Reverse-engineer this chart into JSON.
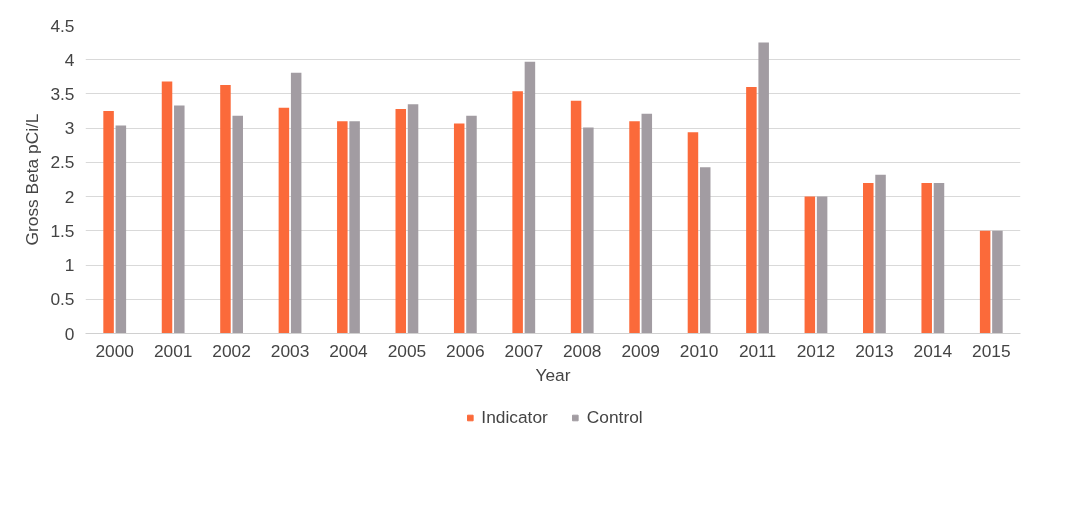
{
  "chart_data": {
    "type": "bar",
    "xlabel": "Year",
    "ylabel": "Gross Beta pCi/L",
    "categories": [
      "2000",
      "2001",
      "2002",
      "2003",
      "2004",
      "2005",
      "2006",
      "2007",
      "2008",
      "2009",
      "2010",
      "2011",
      "2012",
      "2013",
      "2014",
      "2015"
    ],
    "series": [
      {
        "name": "Indicator",
        "color": "#fb6a3a",
        "values": [
          3.25,
          3.68,
          3.63,
          3.3,
          3.1,
          3.28,
          3.07,
          3.54,
          3.4,
          3.1,
          2.94,
          3.6,
          2.0,
          2.2,
          2.2,
          1.5
        ]
      },
      {
        "name": "Control",
        "color": "#a29ca2",
        "values": [
          3.04,
          3.33,
          3.18,
          3.81,
          3.1,
          3.35,
          3.18,
          3.97,
          3.01,
          3.21,
          2.43,
          4.25,
          2.0,
          2.32,
          2.2,
          1.5
        ]
      }
    ],
    "ylim": [
      0,
      4.5
    ],
    "yticks": [
      0,
      0.5,
      1,
      1.5,
      2,
      2.5,
      3,
      3.5,
      4,
      4.5
    ],
    "grid": "y",
    "legend": "bottom"
  }
}
